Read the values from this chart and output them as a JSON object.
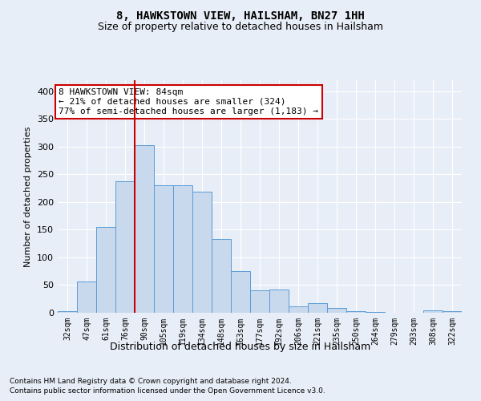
{
  "title": "8, HAWKSTOWN VIEW, HAILSHAM, BN27 1HH",
  "subtitle": "Size of property relative to detached houses in Hailsham",
  "xlabel": "Distribution of detached houses by size in Hailsham",
  "ylabel": "Number of detached properties",
  "categories": [
    "32sqm",
    "47sqm",
    "61sqm",
    "76sqm",
    "90sqm",
    "105sqm",
    "119sqm",
    "134sqm",
    "148sqm",
    "163sqm",
    "177sqm",
    "192sqm",
    "206sqm",
    "221sqm",
    "235sqm",
    "250sqm",
    "264sqm",
    "279sqm",
    "293sqm",
    "308sqm",
    "322sqm"
  ],
  "values": [
    3,
    57,
    155,
    237,
    303,
    230,
    230,
    218,
    133,
    75,
    40,
    42,
    11,
    18,
    8,
    3,
    2,
    0,
    0,
    4,
    3
  ],
  "bar_color": "#c9d9ed",
  "bar_edge_color": "#5b9bd5",
  "vline_color": "#cc0000",
  "vline_x": 3.5,
  "annotation_text": "8 HAWKSTOWN VIEW: 84sqm\n← 21% of detached houses are smaller (324)\n77% of semi-detached houses are larger (1,183) →",
  "annotation_box_color": "#ffffff",
  "annotation_box_edge": "#cc0000",
  "ylim": [
    0,
    420
  ],
  "yticks": [
    0,
    50,
    100,
    150,
    200,
    250,
    300,
    350,
    400
  ],
  "footnote1": "Contains HM Land Registry data © Crown copyright and database right 2024.",
  "footnote2": "Contains public sector information licensed under the Open Government Licence v3.0.",
  "bg_color": "#e8eef7",
  "plot_bg_color": "#e8eef7",
  "grid_color": "#ffffff",
  "title_fontsize": 10,
  "subtitle_fontsize": 9
}
